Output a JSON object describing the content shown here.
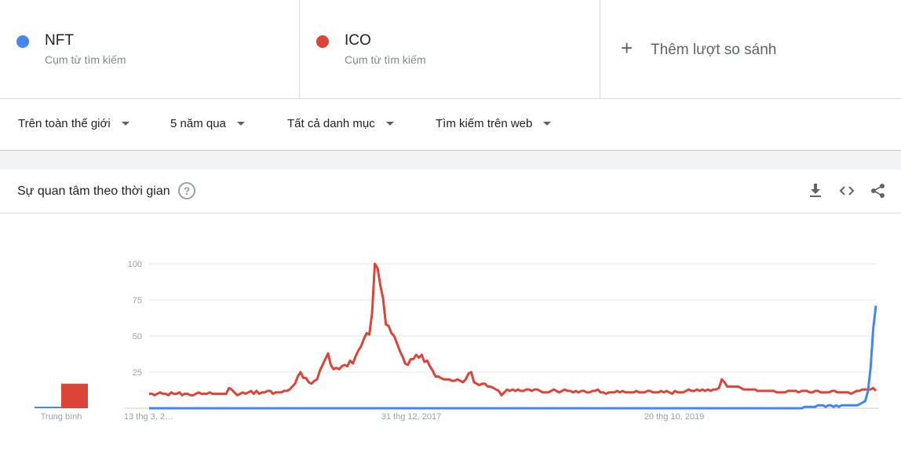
{
  "compare": {
    "terms": [
      {
        "name": "NFT",
        "type": "Cụm từ tìm kiếm",
        "color": "#4285f4"
      },
      {
        "name": "ICO",
        "type": "Cụm từ tìm kiếm",
        "color": "#db4437"
      }
    ],
    "add_label": "Thêm lượt so sánh"
  },
  "filters": {
    "region": "Trên toàn thế giới",
    "time": "5 năm qua",
    "category": "Tất cả danh mục",
    "search_type": "Tìm kiếm trên web"
  },
  "card": {
    "title": "Sự quan tâm theo thời gian",
    "help_icon": "help-circle-icon",
    "actions": [
      "download-icon",
      "embed-icon",
      "share-icon"
    ]
  },
  "chart_data": {
    "type": "line",
    "ylim": [
      0,
      100
    ],
    "yticks": [
      "100",
      "75",
      "50",
      "25"
    ],
    "xticks": [
      "13 thg 3, 2…",
      "31 thg 12, 2017",
      "20 thg 10, 2019"
    ],
    "average_label": "Trung bình",
    "averages": [
      {
        "name": "NFT",
        "value": 1
      },
      {
        "name": "ICO",
        "value": 17
      }
    ],
    "series": [
      {
        "name": "NFT",
        "color": "#4285f4",
        "values": [
          0,
          0,
          0,
          0,
          0,
          0,
          0,
          0,
          0,
          0,
          0,
          0,
          0,
          0,
          0,
          0,
          0,
          0,
          0,
          0,
          0,
          0,
          0,
          0,
          0,
          0,
          0,
          0,
          0,
          0,
          0,
          0,
          0,
          0,
          0,
          0,
          0,
          0,
          0,
          0,
          0,
          0,
          0,
          0,
          0,
          0,
          0,
          0,
          0,
          0,
          0,
          0,
          0,
          0,
          0,
          0,
          0,
          0,
          0,
          0,
          0,
          0,
          0,
          0,
          0,
          0,
          0,
          0,
          0,
          0,
          0,
          0,
          0,
          0,
          0,
          0,
          0,
          0,
          0,
          0,
          0,
          0,
          0,
          0,
          0,
          0,
          0,
          0,
          0,
          0,
          0,
          0,
          0,
          0,
          0,
          0,
          0,
          0,
          0,
          0,
          0,
          0,
          0,
          0,
          0,
          0,
          0,
          0,
          0,
          0,
          0,
          0,
          0,
          0,
          0,
          0,
          0,
          0,
          0,
          0,
          0,
          0,
          0,
          0,
          0,
          0,
          0,
          0,
          0,
          0,
          0,
          0,
          0,
          0,
          0,
          0,
          0,
          0,
          0,
          0,
          0,
          0,
          0,
          0,
          0,
          0,
          0,
          0,
          0,
          0,
          0,
          0,
          0,
          0,
          0,
          0,
          0,
          0,
          0,
          0,
          0,
          0,
          0,
          0,
          0,
          0,
          0,
          0,
          0,
          0,
          0,
          0,
          0,
          0,
          0,
          0,
          0,
          0,
          0,
          0,
          0,
          0,
          0,
          0,
          0,
          0,
          0,
          0,
          0,
          0,
          0,
          0,
          0,
          0,
          0,
          0,
          0,
          0,
          0,
          0,
          0,
          0,
          0,
          0,
          0,
          0,
          0,
          0,
          0,
          0,
          0,
          0,
          0,
          0,
          0,
          0,
          0,
          0,
          0,
          0,
          0,
          0,
          0,
          0,
          0,
          0,
          0,
          0,
          0,
          0,
          0,
          0,
          0,
          0,
          0,
          0,
          0,
          0,
          0,
          0,
          0,
          0,
          0,
          0,
          0,
          0,
          0,
          0,
          1,
          1,
          1,
          1,
          1,
          2,
          2,
          2,
          1,
          2,
          2,
          1,
          2,
          1,
          2,
          2,
          2,
          2,
          2,
          2,
          2,
          3,
          4,
          5,
          12,
          28,
          55,
          71
        ]
      },
      {
        "name": "ICO",
        "color": "#db4437",
        "values": [
          10,
          10,
          9,
          10,
          11,
          10,
          10,
          9,
          11,
          10,
          10,
          11,
          9,
          10,
          10,
          9,
          9,
          10,
          11,
          10,
          10,
          10,
          11,
          10,
          10,
          10,
          10,
          10,
          10,
          14,
          13,
          11,
          9,
          10,
          11,
          10,
          11,
          12,
          10,
          12,
          10,
          11,
          11,
          12,
          12,
          10,
          11,
          11,
          11,
          12,
          12,
          13,
          15,
          17,
          22,
          25,
          21,
          21,
          18,
          17,
          19,
          20,
          26,
          30,
          34,
          38,
          30,
          27,
          28,
          27,
          29,
          30,
          29,
          33,
          31,
          36,
          40,
          43,
          48,
          52,
          51,
          66,
          100,
          97,
          85,
          76,
          58,
          57,
          52,
          50,
          45,
          40,
          36,
          31,
          30,
          34,
          34,
          37,
          35,
          37,
          32,
          33,
          29,
          26,
          22,
          22,
          21,
          20,
          20,
          20,
          19,
          19,
          20,
          19,
          18,
          20,
          24,
          25,
          18,
          17,
          16,
          17,
          17,
          15,
          15,
          14,
          13,
          12,
          9,
          11,
          13,
          12,
          13,
          12,
          13,
          12,
          12,
          13,
          13,
          12,
          13,
          13,
          12,
          11,
          11,
          11,
          12,
          13,
          12,
          11,
          12,
          13,
          12,
          12,
          11,
          12,
          11,
          12,
          12,
          11,
          11,
          12,
          12,
          13,
          11,
          11,
          10,
          11,
          11,
          11,
          12,
          11,
          12,
          11,
          11,
          11,
          11,
          12,
          11,
          11,
          11,
          12,
          12,
          11,
          11,
          11,
          12,
          11,
          12,
          11,
          10,
          12,
          11,
          11,
          11,
          12,
          13,
          12,
          12,
          13,
          12,
          13,
          12,
          13,
          12,
          13,
          13,
          14,
          20,
          18,
          15,
          15,
          15,
          15,
          15,
          14,
          13,
          13,
          13,
          13,
          13,
          12,
          12,
          12,
          12,
          12,
          12,
          12,
          11,
          11,
          11,
          11,
          12,
          12,
          12,
          12,
          11,
          12,
          12,
          12,
          11,
          11,
          12,
          12,
          11,
          11,
          11,
          11,
          12,
          12,
          11,
          11,
          11,
          11,
          11,
          10,
          11,
          12,
          12,
          13,
          13,
          13,
          13,
          14,
          12
        ]
      }
    ]
  }
}
